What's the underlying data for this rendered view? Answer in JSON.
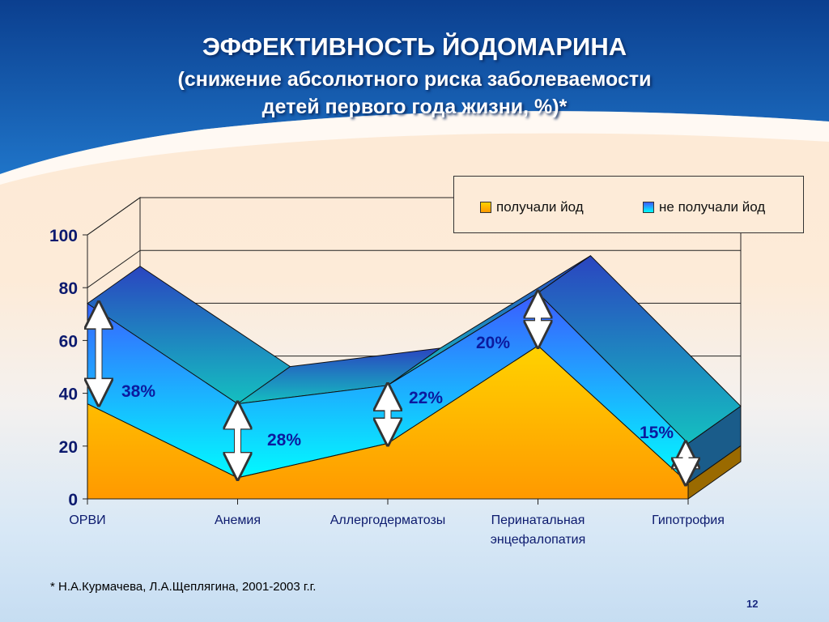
{
  "title": "ЭФФЕКТИВНОСТЬ ЙОДОМАРИНА",
  "subtitle_line1": "(снижение абсолютного риска заболеваемости",
  "subtitle_line2": "детей первого года жизни, %)*",
  "footnote": "* Н.А.Курмачева, Л.А.Щеплягина, 2001-2003 г.г.",
  "page_number": "12",
  "chart_data": {
    "type": "area",
    "title": "ЭФФЕКТИВНОСТЬ ЙОДОМАРИНА",
    "categories": [
      "ОРВИ",
      "Анемия",
      "Аллергодерматозы",
      "Перинатальная энцефалопатия",
      "Гипотрофия"
    ],
    "category_lines": [
      [
        "ОРВИ"
      ],
      [
        "Анемия"
      ],
      [
        "Аллергодерматозы"
      ],
      [
        "Перинатальная",
        "энцефалопатия"
      ],
      [
        "Гипотрофия"
      ]
    ],
    "series": [
      {
        "name": "получали йод",
        "values": [
          36,
          8,
          21,
          58,
          6
        ],
        "color": "#ffb000"
      },
      {
        "name": "не получали йод",
        "values": [
          74,
          36,
          43,
          78,
          21
        ],
        "color": "#1fb8ff"
      }
    ],
    "annotations": [
      "38%",
      "28%",
      "22%",
      "20%",
      "15%"
    ],
    "ylim": [
      0,
      100
    ],
    "yticks": [
      "0",
      "20",
      "40",
      "60",
      "80",
      "100"
    ],
    "grid": true,
    "legend": "top-right"
  },
  "legend": {
    "items": [
      "получали йод",
      "не получали йод"
    ]
  }
}
